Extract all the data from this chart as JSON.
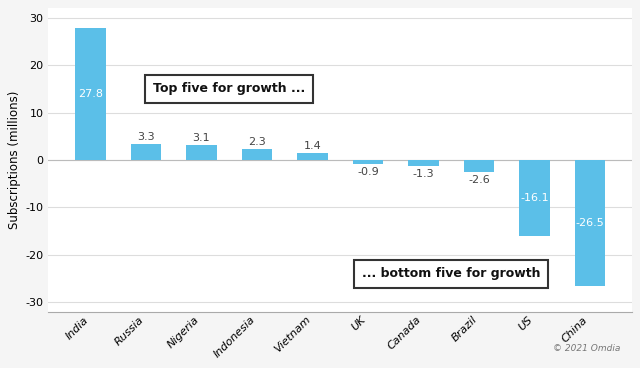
{
  "categories": [
    "India",
    "Russia",
    "Nigeria",
    "Indonesia",
    "Vietnam",
    "UK",
    "Canada",
    "Brazil",
    "US",
    "China"
  ],
  "values": [
    27.8,
    3.3,
    3.1,
    2.3,
    1.4,
    -0.9,
    -1.3,
    -2.6,
    -16.1,
    -26.5
  ],
  "bar_color": "#5BBFE8",
  "ylim": [
    -32,
    32
  ],
  "yticks": [
    -30,
    -20,
    -10,
    0,
    10,
    20,
    30
  ],
  "ylabel": "Subscriptions (millions)",
  "top_box_text": "Top five for growth ...",
  "bottom_box_text": "... bottom five for growth",
  "bg_color": "#f5f5f5",
  "plot_bg_color": "#ffffff",
  "grid_color": "#dddddd",
  "label_fontsize": 8,
  "value_fontsize": 8,
  "ylabel_fontsize": 8.5,
  "annotation_fontsize": 9,
  "inside_label_color": "#ffffff",
  "outside_label_color": "#444444"
}
